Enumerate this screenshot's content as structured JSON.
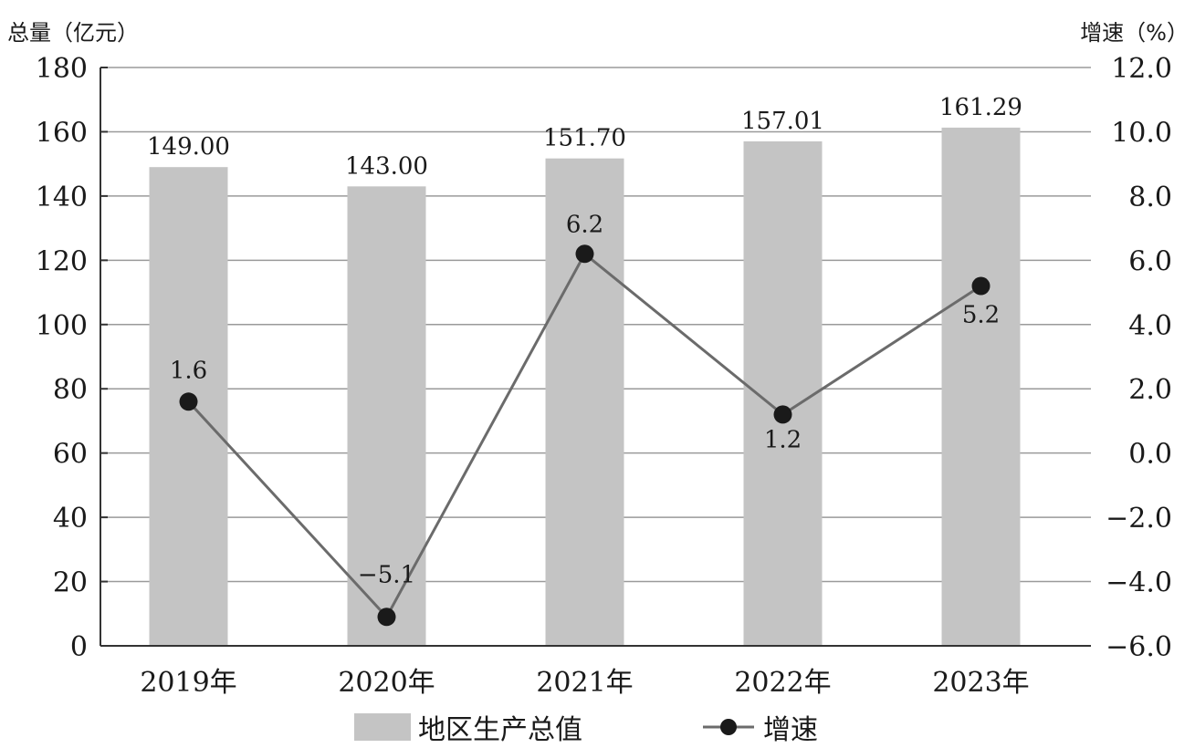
{
  "chart_data": {
    "type": "bar",
    "categories": [
      "2019年",
      "2020年",
      "2021年",
      "2022年",
      "2023年"
    ],
    "series": [
      {
        "name": "地区生产总值",
        "type": "bar",
        "axis": "left",
        "values": [
          149.0,
          143.0,
          151.7,
          157.01,
          161.29
        ],
        "labels": [
          "149.00",
          "143.00",
          "151.70",
          "157.01",
          "161.29"
        ]
      },
      {
        "name": "增速",
        "type": "line",
        "axis": "right",
        "values": [
          1.6,
          -5.1,
          6.2,
          1.2,
          5.2
        ],
        "labels": [
          "1.6",
          "−5.1",
          "6.2",
          "1.2",
          "5.2"
        ]
      }
    ],
    "left_axis": {
      "title": "总量（亿元）",
      "ylim": [
        0,
        180
      ],
      "ticks": [
        "180",
        "160",
        "140",
        "120",
        "100",
        "80",
        "60",
        "40",
        "20",
        "0"
      ],
      "tick_values": [
        180,
        160,
        140,
        120,
        100,
        80,
        60,
        40,
        20,
        0
      ]
    },
    "right_axis": {
      "title": "增速（%）",
      "ylim": [
        -6,
        12
      ],
      "ticks": [
        "12.0",
        "10.0",
        "8.0",
        "6.0",
        "4.0",
        "2.0",
        "0.0",
        "−2.0",
        "−4.0",
        "−6.0"
      ],
      "tick_values": [
        12,
        10,
        8,
        6,
        4,
        2,
        0,
        -2,
        -4,
        -6
      ]
    },
    "grid": true,
    "legend_position": "bottom",
    "colors": {
      "bar": "#c4c4c4",
      "line": "#6b6b6b",
      "marker": "#1a1a1a",
      "grid": "#9a9a9a",
      "axis": "#333333"
    }
  }
}
